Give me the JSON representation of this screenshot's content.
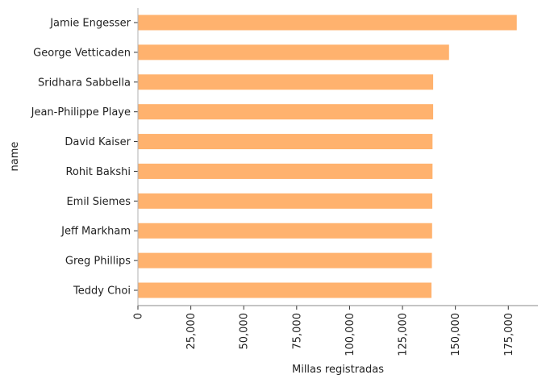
{
  "chart_data": {
    "type": "bar",
    "orientation": "horizontal",
    "categories": [
      "Jamie Engesser",
      "George Vetticaden",
      "Sridhara Sabbella",
      "Jean-Philippe Playe",
      "David Kaiser",
      "Rohit Bakshi",
      "Emil Siemes",
      "Jeff Markham",
      "Greg Phillips",
      "Teddy Choi"
    ],
    "values": [
      179000,
      147000,
      139500,
      139500,
      139200,
      139200,
      139100,
      139000,
      138900,
      138700
    ],
    "xlabel": "Millas registradas",
    "ylabel": "name",
    "xlim": [
      0,
      189000
    ],
    "xticks": [
      0,
      25000,
      50000,
      75000,
      100000,
      125000,
      150000,
      175000
    ],
    "xtick_labels": [
      "0",
      "25,000",
      "50,000",
      "75,000",
      "100,000",
      "125,000",
      "150,000",
      "175,000"
    ],
    "bar_color": "#ffb26e",
    "grid": false,
    "legend": "none"
  }
}
